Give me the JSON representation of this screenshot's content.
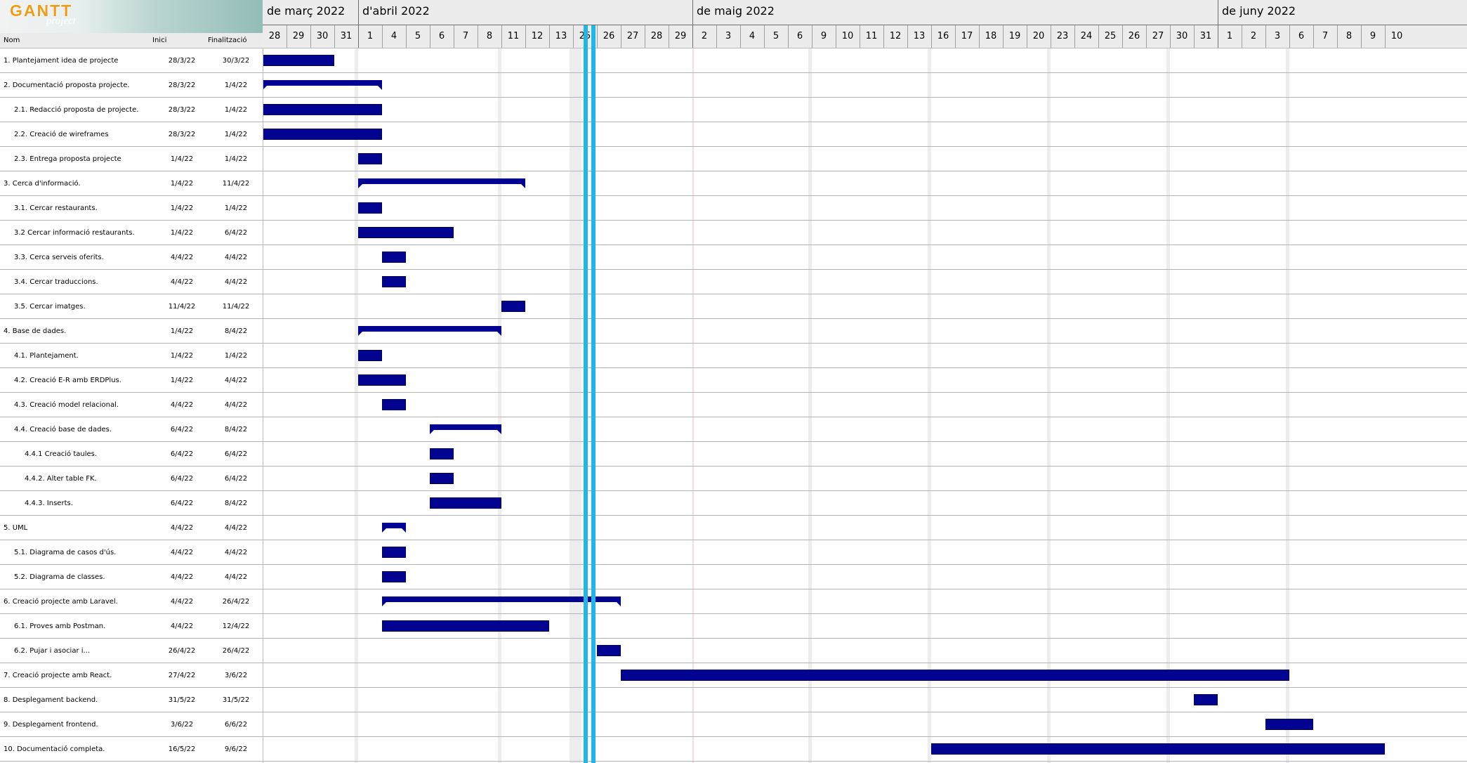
{
  "logo": {
    "word": "GANTT",
    "sub": "project"
  },
  "columns": {
    "name": "Nom",
    "start": "Inici",
    "end": "Finalització"
  },
  "months": [
    "de març 2022",
    "d'abril 2022",
    "de maig 2022",
    "de juny 2022"
  ],
  "days": [
    "28",
    "29",
    "30",
    "31",
    "1",
    "4",
    "5",
    "6",
    "7",
    "8",
    "11",
    "12",
    "13",
    "25",
    "26",
    "27",
    "28",
    "29",
    "2",
    "3",
    "4",
    "5",
    "6",
    "9",
    "10",
    "11",
    "12",
    "13",
    "16",
    "17",
    "18",
    "19",
    "20",
    "23",
    "24",
    "25",
    "26",
    "27",
    "30",
    "31",
    "1",
    "2",
    "3",
    "6",
    "7",
    "8",
    "9",
    "10"
  ],
  "tasks": [
    {
      "name": "1. Plantejament idea de projecte",
      "start": "28/3/22",
      "end": "30/3/22",
      "type": "task"
    },
    {
      "name": "2. Documentació proposta projecte.",
      "start": "28/3/22",
      "end": "1/4/22",
      "type": "summary"
    },
    {
      "name": "2.1. Redacció proposta de projecte.",
      "start": "28/3/22",
      "end": "1/4/22",
      "type": "task"
    },
    {
      "name": "2.2. Creació de wireframes",
      "start": "28/3/22",
      "end": "1/4/22",
      "type": "task"
    },
    {
      "name": "2.3. Entrega proposta projecte",
      "start": "1/4/22",
      "end": "1/4/22",
      "type": "task"
    },
    {
      "name": "3. Cerca d'informació.",
      "start": "1/4/22",
      "end": "11/4/22",
      "type": "summary"
    },
    {
      "name": "3.1. Cercar restaurants.",
      "start": "1/4/22",
      "end": "1/4/22",
      "type": "task"
    },
    {
      "name": "3.2 Cercar informació restaurants.",
      "start": "1/4/22",
      "end": "6/4/22",
      "type": "task"
    },
    {
      "name": "3.3. Cerca serveis oferits.",
      "start": "4/4/22",
      "end": "4/4/22",
      "type": "task"
    },
    {
      "name": "3.4. Cercar traduccions.",
      "start": "4/4/22",
      "end": "4/4/22",
      "type": "task"
    },
    {
      "name": "3.5. Cercar imatges.",
      "start": "11/4/22",
      "end": "11/4/22",
      "type": "task"
    },
    {
      "name": "4. Base de dades.",
      "start": "1/4/22",
      "end": "8/4/22",
      "type": "summary"
    },
    {
      "name": "4.1. Plantejament.",
      "start": "1/4/22",
      "end": "1/4/22",
      "type": "task"
    },
    {
      "name": "4.2. Creació E-R amb ERDPlus.",
      "start": "1/4/22",
      "end": "4/4/22",
      "type": "task"
    },
    {
      "name": "4.3. Creació model relacional.",
      "start": "4/4/22",
      "end": "4/4/22",
      "type": "task"
    },
    {
      "name": "4.4. Creació base de dades.",
      "start": "6/4/22",
      "end": "8/4/22",
      "type": "summary"
    },
    {
      "name": "4.4.1 Creació taules.",
      "start": "6/4/22",
      "end": "6/4/22",
      "type": "task"
    },
    {
      "name": "4.4.2. Alter table FK.",
      "start": "6/4/22",
      "end": "6/4/22",
      "type": "task"
    },
    {
      "name": "4.4.3. Inserts.",
      "start": "6/4/22",
      "end": "8/4/22",
      "type": "task"
    },
    {
      "name": "5. UML",
      "start": "4/4/22",
      "end": "4/4/22",
      "type": "summary"
    },
    {
      "name": "5.1. Diagrama de casos d'ús.",
      "start": "4/4/22",
      "end": "4/4/22",
      "type": "task"
    },
    {
      "name": "5.2. Diagrama de classes.",
      "start": "4/4/22",
      "end": "4/4/22",
      "type": "task"
    },
    {
      "name": "6. Creació projecte amb Laravel.",
      "start": "4/4/22",
      "end": "26/4/22",
      "type": "summary"
    },
    {
      "name": "6.1. Proves amb Postman.",
      "start": "4/4/22",
      "end": "12/4/22",
      "type": "task"
    },
    {
      "name": "6.2. Pujar i asociar i...",
      "start": "26/4/22",
      "end": "26/4/22",
      "type": "task"
    },
    {
      "name": "7. Creació projecte amb React.",
      "start": "27/4/22",
      "end": "3/6/22",
      "type": "task"
    },
    {
      "name": "8. Desplegament backend.",
      "start": "31/5/22",
      "end": "31/5/22",
      "type": "task"
    },
    {
      "name": "9. Desplegament frontend.",
      "start": "3/6/22",
      "end": "6/6/22",
      "type": "task"
    },
    {
      "name": "10. Documentació completa.",
      "start": "16/5/22",
      "end": "9/6/22",
      "type": "task"
    }
  ]
}
